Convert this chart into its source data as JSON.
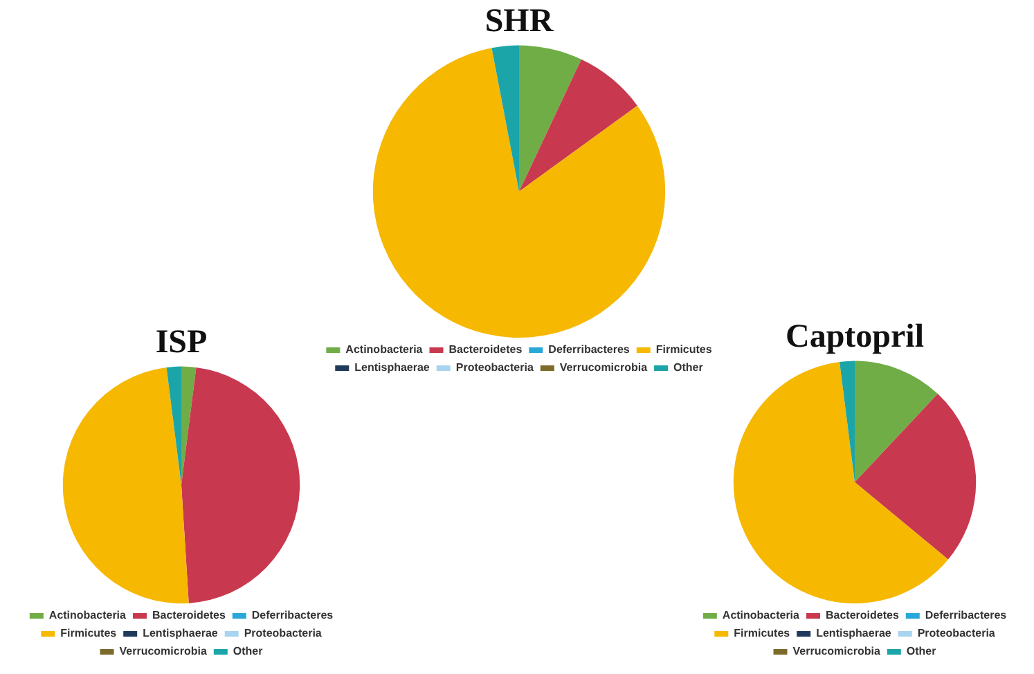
{
  "chart_data": [
    {
      "type": "pie",
      "title": "SHR",
      "categories": [
        "Actinobacteria",
        "Bacteroidetes",
        "Deferribacteres",
        "Firmicutes",
        "Lentisphaerae",
        "Proteobacteria",
        "Verrucomicrobia",
        "Other"
      ],
      "values": [
        7,
        8,
        0,
        82,
        0,
        0,
        0,
        3
      ],
      "colors": [
        "#70ad47",
        "#c8394f",
        "#2aa7d9",
        "#f6b800",
        "#1f3a5a",
        "#a9d4ef",
        "#7d6b2c",
        "#1ba5a8"
      ],
      "legend": "bottom"
    },
    {
      "type": "pie",
      "title": "ISP",
      "categories": [
        "Actinobacteria",
        "Bacteroidetes",
        "Deferribacteres",
        "Firmicutes",
        "Lentisphaerae",
        "Proteobacteria",
        "Verrucomicrobia",
        "Other"
      ],
      "values": [
        2,
        47,
        0,
        49,
        0,
        0,
        0,
        2
      ],
      "colors": [
        "#70ad47",
        "#c8394f",
        "#2aa7d9",
        "#f6b800",
        "#1f3a5a",
        "#a9d4ef",
        "#7d6b2c",
        "#1ba5a8"
      ],
      "legend": "bottom"
    },
    {
      "type": "pie",
      "title": "Captopril",
      "categories": [
        "Actinobacteria",
        "Bacteroidetes",
        "Deferribacteres",
        "Firmicutes",
        "Lentisphaerae",
        "Proteobacteria",
        "Verrucomicrobia",
        "Other"
      ],
      "values": [
        12,
        24,
        0,
        62,
        0,
        0,
        0,
        2
      ],
      "colors": [
        "#70ad47",
        "#c8394f",
        "#2aa7d9",
        "#f6b800",
        "#1f3a5a",
        "#a9d4ef",
        "#7d6b2c",
        "#1ba5a8"
      ],
      "legend": "bottom"
    }
  ]
}
